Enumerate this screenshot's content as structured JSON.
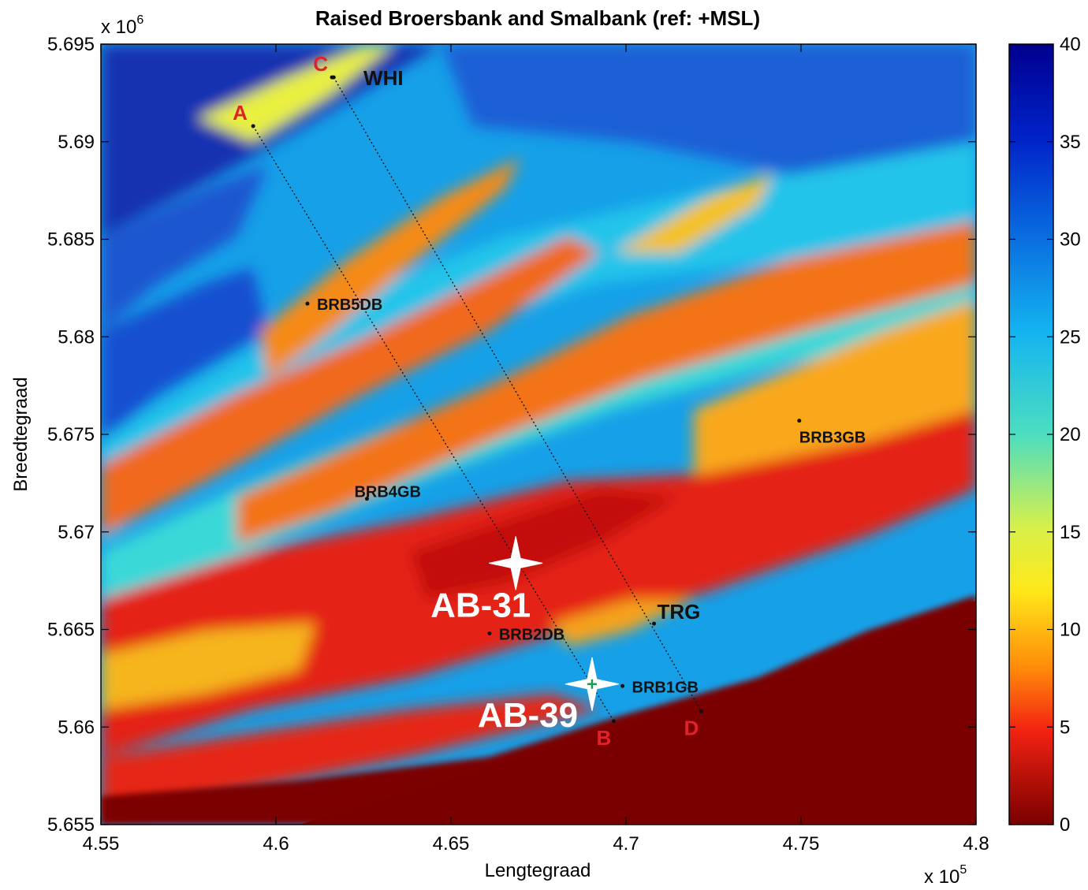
{
  "title": "Raised Broersbank and Smalbank (ref: +MSL)",
  "xlabel": "Lengtegraad",
  "ylabel": "Breedtegraad",
  "x_exponent_base": "x 10",
  "x_exponent_power": "5",
  "y_exponent_base": "x 10",
  "y_exponent_power": "6",
  "x_ticks": [
    "4.55",
    "4.6",
    "4.65",
    "4.7",
    "4.75",
    "4.8"
  ],
  "y_ticks": [
    "5.695",
    "5.69",
    "5.685",
    "5.68",
    "5.675",
    "5.67",
    "5.665",
    "5.66",
    "5.655"
  ],
  "colorbar_ticks": [
    "40",
    "35",
    "30",
    "25",
    "20",
    "15",
    "10",
    "5",
    "0"
  ],
  "colors": {
    "deep": "#1a2fa3",
    "mid": "#1eb6ea",
    "shallow": "#e73a1d",
    "land": "#7c0000"
  },
  "stations": [
    {
      "label": "BRB5DB",
      "x": 4.609,
      "y": 5.6817
    },
    {
      "label": "BRB4GB",
      "x": 4.626,
      "y": 5.6717
    },
    {
      "label": "BRB3GB",
      "x": 4.7495,
      "y": 5.6757
    },
    {
      "label": "BRB2DB",
      "x": 4.661,
      "y": 5.6648
    },
    {
      "label": "BRB1GB",
      "x": 4.699,
      "y": 5.6621
    },
    {
      "label": "TRG",
      "x": 4.708,
      "y": 5.6653
    },
    {
      "label": "WHI",
      "x": 4.616,
      "y": 5.6933
    }
  ],
  "transects": [
    {
      "start_label": "A",
      "end_label": "B",
      "x1": 4.5935,
      "y1": 5.6908,
      "x2": 4.6965,
      "y2": 5.6603
    },
    {
      "start_label": "C",
      "end_label": "D",
      "x1": 4.6165,
      "y1": 5.6933,
      "x2": 4.7215,
      "y2": 5.6608
    }
  ],
  "markers": [
    {
      "label": "AB-31",
      "x": 4.6685,
      "y": 5.6684
    },
    {
      "label": "AB-39",
      "x": 4.6903,
      "y": 5.6622
    }
  ]
}
